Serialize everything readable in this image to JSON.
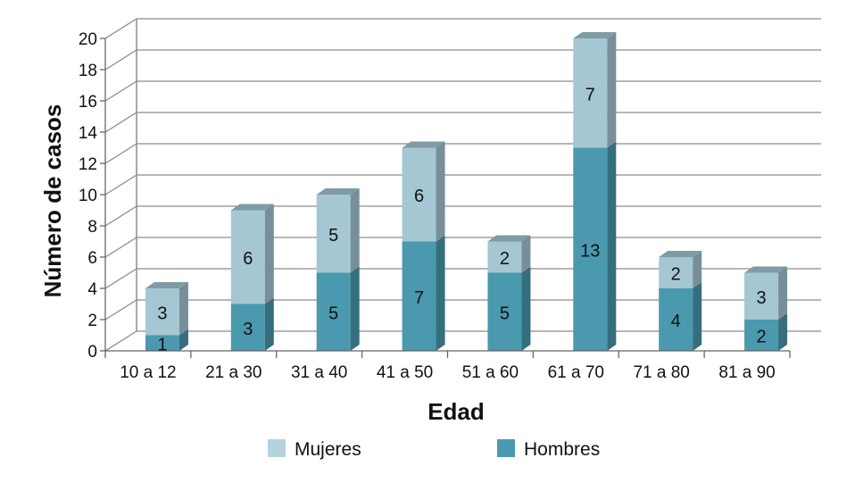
{
  "chart_data": {
    "type": "bar",
    "stacked": true,
    "three_d": true,
    "title": "",
    "xlabel": "Edad",
    "ylabel": "Número de casos",
    "ylim": [
      0,
      20
    ],
    "y_ticks": [
      "0",
      "2",
      "4",
      "6",
      "8",
      "10",
      "12",
      "14",
      "16",
      "18",
      "20"
    ],
    "categories": [
      "10 a 12",
      "21 a 30",
      "31 a 40",
      "41 a 50",
      "51 a 60",
      "61 a 70",
      "71 a 80",
      "81 a 90"
    ],
    "series": [
      {
        "name": "Hombres",
        "values": [
          1,
          3,
          5,
          7,
          5,
          13,
          4,
          2
        ],
        "color": "#4a99ae"
      },
      {
        "name": "Mujeres",
        "values": [
          3,
          6,
          5,
          6,
          2,
          7,
          2,
          3
        ],
        "color": "#a4c7d3"
      }
    ],
    "legend": {
      "position": "bottom",
      "order": [
        "Mujeres",
        "Hombres"
      ]
    },
    "grid": true,
    "gridline_color": "#8c8c8c"
  }
}
